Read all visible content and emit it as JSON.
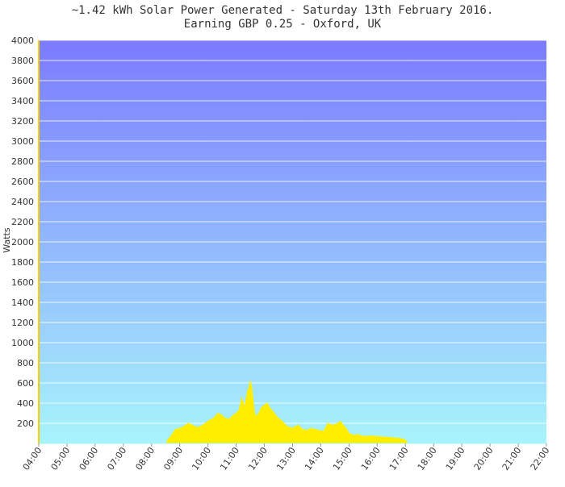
{
  "chart_data": {
    "type": "area",
    "title": "~1.42 kWh Solar Power Generated - Saturday 13th February 2016.",
    "subtitle": "Earning GBP 0.25 - Oxford, UK",
    "ylabel": "Watts",
    "xlabel": "",
    "ylim": [
      0,
      4000
    ],
    "xlim": [
      4.0,
      22.0
    ],
    "grid": true,
    "y_ticks": [
      200,
      400,
      600,
      800,
      1000,
      1200,
      1400,
      1600,
      1800,
      2000,
      2200,
      2400,
      2600,
      2800,
      3000,
      3200,
      3400,
      3600,
      3800,
      4000
    ],
    "x_ticks": [
      {
        "x": 4,
        "label": "04:00"
      },
      {
        "x": 5,
        "label": "05:00"
      },
      {
        "x": 6,
        "label": "06:00"
      },
      {
        "x": 7,
        "label": "07:00"
      },
      {
        "x": 8,
        "label": "08:00"
      },
      {
        "x": 9,
        "label": "09:00"
      },
      {
        "x": 10,
        "label": "10:00"
      },
      {
        "x": 11,
        "label": "11:00"
      },
      {
        "x": 12,
        "label": "12:00"
      },
      {
        "x": 13,
        "label": "13:00"
      },
      {
        "x": 14,
        "label": "14:00"
      },
      {
        "x": 15,
        "label": "15:00"
      },
      {
        "x": 16,
        "label": "16:00"
      },
      {
        "x": 17,
        "label": "17:00"
      },
      {
        "x": 18,
        "label": "18:00"
      },
      {
        "x": 19,
        "label": "19:00"
      },
      {
        "x": 20,
        "label": "20:00"
      },
      {
        "x": 21,
        "label": "21:00"
      },
      {
        "x": 22,
        "label": "22:00"
      }
    ],
    "series": [
      {
        "color": "#ffee00",
        "x": [
          8.55,
          8.65,
          8.75,
          8.85,
          9.0,
          9.15,
          9.3,
          9.45,
          9.6,
          9.75,
          9.9,
          10.05,
          10.2,
          10.35,
          10.5,
          10.6,
          10.75,
          10.9,
          11.0,
          11.1,
          11.2,
          11.3,
          11.4,
          11.45,
          11.5,
          11.55,
          11.6,
          11.65,
          11.7,
          11.75,
          11.8,
          11.9,
          12.0,
          12.1,
          12.2,
          12.3,
          12.4,
          12.5,
          12.6,
          12.7,
          12.8,
          12.9,
          13.0,
          13.1,
          13.2,
          13.35,
          13.5,
          13.65,
          13.8,
          13.95,
          14.1,
          14.25,
          14.4,
          14.5,
          14.6,
          14.7,
          14.8,
          14.9,
          15.0,
          15.1,
          15.2,
          15.3,
          15.45,
          15.6,
          15.8,
          16.0,
          16.2,
          16.4,
          16.6,
          16.8,
          16.95,
          17.05
        ],
        "values": [
          30,
          60,
          100,
          140,
          150,
          170,
          200,
          180,
          160,
          170,
          200,
          230,
          250,
          300,
          280,
          250,
          240,
          280,
          300,
          330,
          450,
          360,
          520,
          550,
          620,
          560,
          430,
          300,
          270,
          280,
          300,
          360,
          380,
          400,
          350,
          320,
          280,
          250,
          230,
          200,
          170,
          160,
          150,
          170,
          180,
          140,
          130,
          150,
          140,
          130,
          120,
          200,
          180,
          190,
          200,
          220,
          180,
          150,
          100,
          90,
          80,
          90,
          75,
          70,
          75,
          70,
          65,
          60,
          55,
          50,
          40,
          20
        ]
      }
    ]
  }
}
